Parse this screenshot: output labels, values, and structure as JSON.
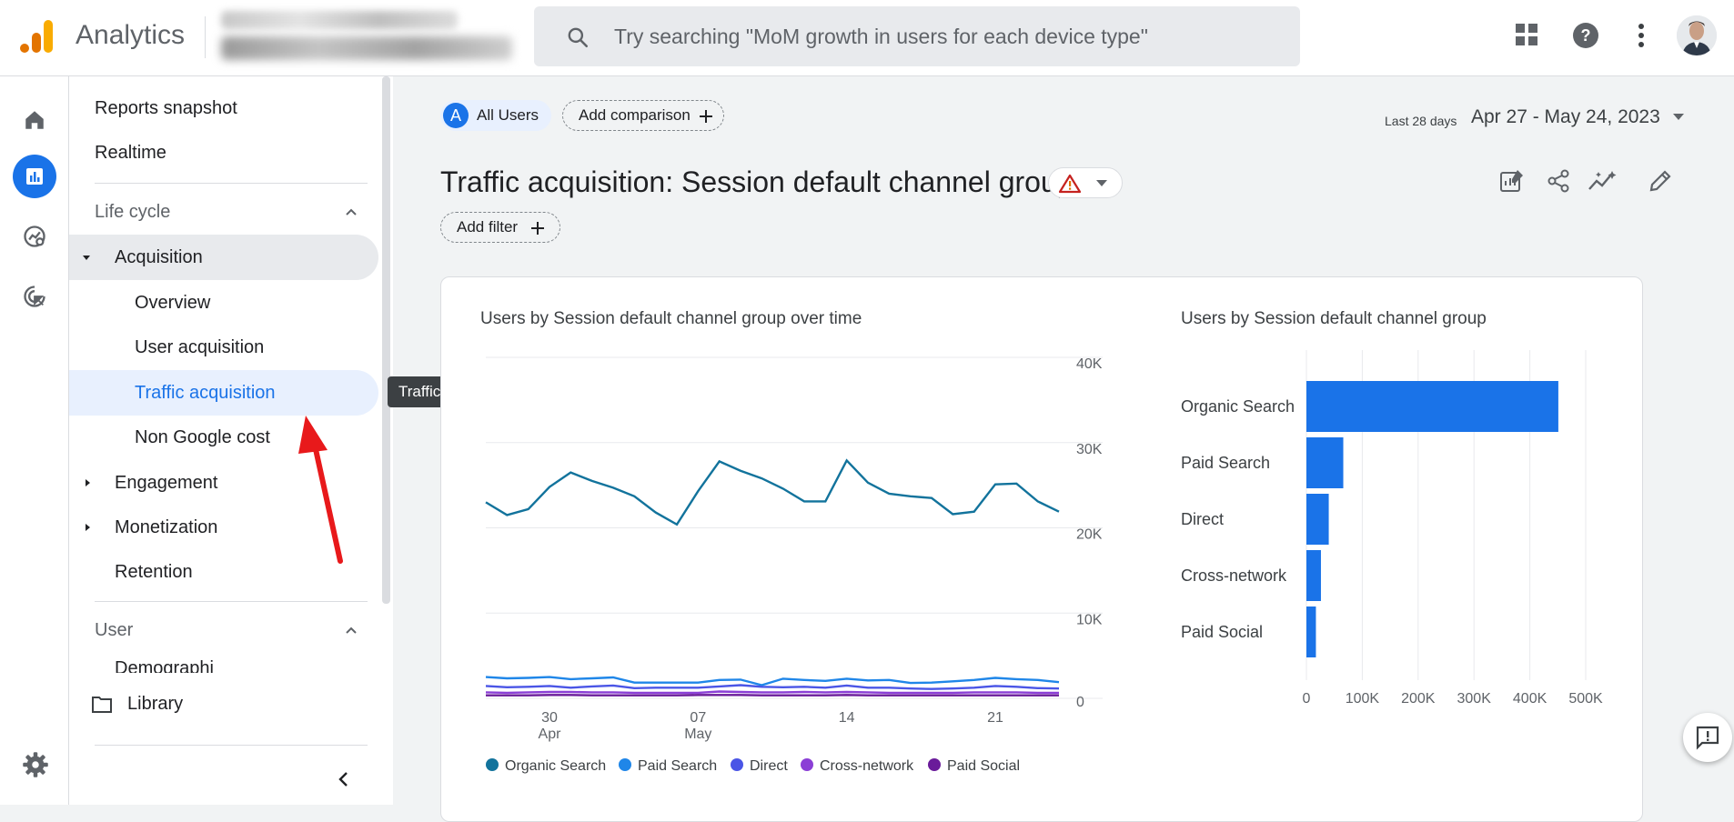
{
  "app": {
    "name": "Analytics"
  },
  "search": {
    "placeholder": "Try searching \"MoM growth in users for each device type\""
  },
  "sidebar": {
    "reports_snapshot": "Reports snapshot",
    "realtime": "Realtime",
    "lifecycle": "Life cycle",
    "acquisition": "Acquisition",
    "overview": "Overview",
    "user_acquisition": "User acquisition",
    "traffic_acquisition": "Traffic acquisition",
    "non_google_cost": "Non Google cost",
    "engagement": "Engagement",
    "monetization": "Monetization",
    "retention": "Retention",
    "user": "User",
    "demographics_partial": "Demographi",
    "library": "Library"
  },
  "tooltip": "Traffic acquisition",
  "toolbar": {
    "segment_badge": "A",
    "segment_label": "All Users",
    "add_comparison": "Add comparison",
    "date_prefix": "Last 28 days",
    "date_range": "Apr 27 - May 24, 2023"
  },
  "page": {
    "title": "Traffic acquisition: Session default channel group",
    "add_filter": "Add filter"
  },
  "colors": {
    "organic": "#12739c",
    "paid_search": "#1f86e8",
    "direct": "#4a55e6",
    "cross_network": "#8b3fd6",
    "paid_social": "#6a1b9a",
    "bar": "#1a73e8",
    "accent": "#1a73e8"
  },
  "chart_data": [
    {
      "type": "line",
      "title": "Users by Session default channel group over time",
      "x": [
        "Apr 27",
        "Apr 28",
        "Apr 29",
        "Apr 30",
        "May 1",
        "May 2",
        "May 3",
        "May 4",
        "May 5",
        "May 6",
        "May 7",
        "May 8",
        "May 9",
        "May 10",
        "May 11",
        "May 12",
        "May 13",
        "May 14",
        "May 15",
        "May 16",
        "May 17",
        "May 18",
        "May 19",
        "May 20",
        "May 21",
        "May 22",
        "May 23",
        "May 24"
      ],
      "x_tick_labels": [
        {
          "day": "30",
          "month": "Apr"
        },
        {
          "day": "07",
          "month": "May"
        },
        {
          "day": "14",
          "month": ""
        },
        {
          "day": "21",
          "month": ""
        }
      ],
      "ylim": [
        0,
        40000
      ],
      "y_ticks": [
        "0",
        "10K",
        "20K",
        "30K",
        "40K"
      ],
      "series": [
        {
          "name": "Organic Search",
          "values": [
            23000,
            21500,
            22200,
            24800,
            26500,
            25500,
            24700,
            23700,
            21800,
            20400,
            24300,
            27800,
            26700,
            25800,
            24600,
            23100,
            23100,
            27900,
            25300,
            24000,
            23700,
            23500,
            21600,
            21900,
            25100,
            25200,
            23100,
            21900
          ]
        },
        {
          "name": "Paid Search",
          "values": [
            2500,
            2350,
            2400,
            2500,
            2250,
            2350,
            2450,
            1850,
            1850,
            1850,
            1850,
            2150,
            2200,
            1550,
            2300,
            2150,
            2050,
            2300,
            2100,
            2150,
            1800,
            1850,
            2000,
            2150,
            2400,
            2250,
            2150,
            1900
          ]
        },
        {
          "name": "Direct",
          "values": [
            1450,
            1300,
            1350,
            1450,
            1250,
            1400,
            1500,
            1200,
            1250,
            1250,
            1250,
            1400,
            1550,
            1350,
            1300,
            1350,
            1250,
            1500,
            1250,
            1250,
            1150,
            1100,
            1150,
            1250,
            1450,
            1350,
            1200,
            1150
          ]
        },
        {
          "name": "Cross-network",
          "values": [
            700,
            650,
            700,
            750,
            750,
            700,
            700,
            650,
            650,
            650,
            650,
            800,
            750,
            700,
            700,
            750,
            700,
            750,
            700,
            650,
            650,
            650,
            650,
            700,
            700,
            700,
            650,
            650
          ]
        },
        {
          "name": "Paid Social",
          "values": [
            350,
            350,
            350,
            400,
            400,
            350,
            350,
            350,
            350,
            350,
            400,
            400,
            400,
            350,
            350,
            350,
            350,
            400,
            350,
            350,
            350,
            350,
            350,
            350,
            350,
            350,
            350,
            350
          ]
        }
      ]
    },
    {
      "type": "bar",
      "orientation": "horizontal",
      "title": "Users by Session default channel group",
      "categories": [
        "Organic Search",
        "Paid Search",
        "Direct",
        "Cross-network",
        "Paid Social"
      ],
      "values": [
        451000,
        66000,
        40000,
        26000,
        17000
      ],
      "xlim": [
        0,
        500000
      ],
      "x_ticks": [
        "0",
        "100K",
        "200K",
        "300K",
        "400K",
        "500K"
      ]
    }
  ]
}
